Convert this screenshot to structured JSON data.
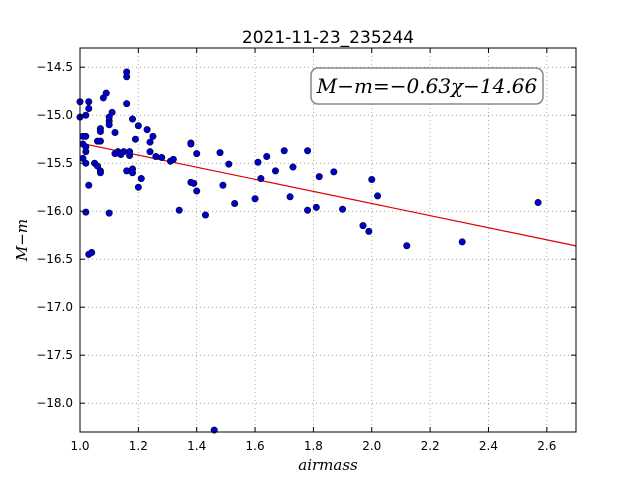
{
  "chart_data": {
    "type": "scatter",
    "title": "2021-11-23_235244",
    "xlabel": "airmass",
    "ylabel": "M−m",
    "xlim": [
      1.0,
      2.7
    ],
    "ylim": [
      -14.3,
      -18.3
    ],
    "y_inverted": true,
    "grid": true,
    "x_ticks": [
      "1.0",
      "1.2",
      "1.4",
      "1.6",
      "1.8",
      "2.0",
      "2.2",
      "2.4",
      "2.6"
    ],
    "y_ticks": [
      "−14.5",
      "−15.0",
      "−15.5",
      "−16.0",
      "−16.5",
      "−17.0",
      "−17.5",
      "−18.0"
    ],
    "annotation": "M−m=−0.63χ−14.66",
    "point_color": "#0000cc",
    "line_color": "#dd0000",
    "fit_line": {
      "slope": -0.63,
      "intercept": -14.66,
      "x_range": [
        1.0,
        2.7
      ]
    },
    "points": [
      [
        1.0,
        -14.86
      ],
      [
        1.0,
        -15.02
      ],
      [
        1.01,
        -15.22
      ],
      [
        1.01,
        -15.3
      ],
      [
        1.01,
        -15.45
      ],
      [
        1.02,
        -15.33
      ],
      [
        1.02,
        -15.38
      ],
      [
        1.02,
        -15.5
      ],
      [
        1.02,
        -16.01
      ],
      [
        1.02,
        -15.0
      ],
      [
        1.02,
        -15.22
      ],
      [
        1.03,
        -14.93
      ],
      [
        1.03,
        -14.86
      ],
      [
        1.03,
        -15.73
      ],
      [
        1.03,
        -16.45
      ],
      [
        1.04,
        -16.43
      ],
      [
        1.05,
        -15.5
      ],
      [
        1.06,
        -15.27
      ],
      [
        1.06,
        -15.53
      ],
      [
        1.07,
        -15.17
      ],
      [
        1.07,
        -15.14
      ],
      [
        1.07,
        -15.27
      ],
      [
        1.07,
        -15.58
      ],
      [
        1.07,
        -15.6
      ],
      [
        1.08,
        -14.82
      ],
      [
        1.09,
        -14.77
      ],
      [
        1.1,
        -15.06
      ],
      [
        1.1,
        -15.1
      ],
      [
        1.1,
        -15.02
      ],
      [
        1.1,
        -16.02
      ],
      [
        1.11,
        -14.97
      ],
      [
        1.12,
        -15.18
      ],
      [
        1.12,
        -15.4
      ],
      [
        1.13,
        -15.38
      ],
      [
        1.14,
        -15.41
      ],
      [
        1.15,
        -15.38
      ],
      [
        1.16,
        -14.55
      ],
      [
        1.16,
        -14.6
      ],
      [
        1.16,
        -14.88
      ],
      [
        1.16,
        -15.58
      ],
      [
        1.17,
        -15.42
      ],
      [
        1.17,
        -15.38
      ],
      [
        1.18,
        -15.04
      ],
      [
        1.18,
        -15.56
      ],
      [
        1.18,
        -15.6
      ],
      [
        1.19,
        -15.25
      ],
      [
        1.2,
        -15.11
      ],
      [
        1.2,
        -15.75
      ],
      [
        1.21,
        -15.66
      ],
      [
        1.23,
        -15.15
      ],
      [
        1.24,
        -15.28
      ],
      [
        1.24,
        -15.38
      ],
      [
        1.25,
        -15.22
      ],
      [
        1.26,
        -15.43
      ],
      [
        1.28,
        -15.44
      ],
      [
        1.31,
        -15.48
      ],
      [
        1.32,
        -15.46
      ],
      [
        1.34,
        -15.99
      ],
      [
        1.38,
        -15.29
      ],
      [
        1.38,
        -15.3
      ],
      [
        1.38,
        -15.7
      ],
      [
        1.39,
        -15.71
      ],
      [
        1.4,
        -15.4
      ],
      [
        1.4,
        -15.79
      ],
      [
        1.43,
        -16.04
      ],
      [
        1.46,
        -18.28
      ],
      [
        1.48,
        -15.39
      ],
      [
        1.49,
        -15.73
      ],
      [
        1.51,
        -15.51
      ],
      [
        1.53,
        -15.92
      ],
      [
        1.6,
        -15.87
      ],
      [
        1.61,
        -15.49
      ],
      [
        1.62,
        -15.66
      ],
      [
        1.64,
        -15.43
      ],
      [
        1.67,
        -15.58
      ],
      [
        1.7,
        -15.37
      ],
      [
        1.72,
        -15.85
      ],
      [
        1.73,
        -15.54
      ],
      [
        1.78,
        -15.99
      ],
      [
        1.78,
        -15.37
      ],
      [
        1.81,
        -15.96
      ],
      [
        1.82,
        -15.64
      ],
      [
        1.87,
        -15.59
      ],
      [
        1.9,
        -15.98
      ],
      [
        1.97,
        -16.15
      ],
      [
        1.99,
        -16.21
      ],
      [
        2.0,
        -15.67
      ],
      [
        2.02,
        -15.84
      ],
      [
        2.12,
        -16.36
      ],
      [
        2.31,
        -16.32
      ],
      [
        2.57,
        -15.91
      ]
    ]
  }
}
